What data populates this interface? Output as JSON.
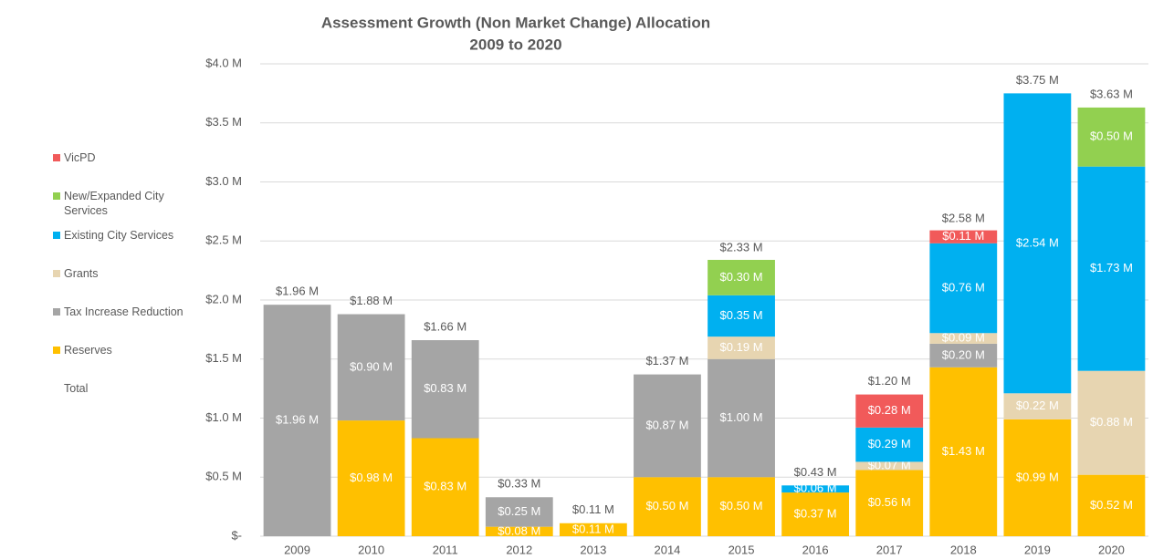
{
  "chart_data": {
    "type": "stacked_bar",
    "title": "Assessment Growth (Non Market Change) Allocation",
    "subtitle": "2009 to 2020",
    "categories": [
      "2009",
      "2010",
      "2011",
      "2012",
      "2013",
      "2014",
      "2015",
      "2016",
      "2017",
      "2018",
      "2019",
      "2020"
    ],
    "series": [
      {
        "name": "Reserves",
        "color": "#ffc000",
        "values": [
          null,
          0.98,
          0.83,
          0.08,
          0.11,
          0.5,
          0.5,
          0.37,
          0.56,
          1.43,
          0.99,
          0.52
        ],
        "value_labels": [
          null,
          "$0.98 M",
          "$0.83 M",
          "$0.08 M",
          "$0.11 M",
          "$0.50 M",
          "$0.50 M",
          "$0.37 M",
          "$0.56 M",
          "$1.43 M",
          "$0.99 M",
          "$0.52 M"
        ]
      },
      {
        "name": "Tax Increase Reduction",
        "color": "#a5a5a5",
        "values": [
          1.96,
          0.9,
          0.83,
          0.25,
          null,
          0.87,
          1.0,
          null,
          null,
          0.2,
          null,
          null
        ],
        "value_labels": [
          "$1.96 M",
          "$0.90 M",
          "$0.83 M",
          "$0.25 M",
          null,
          "$0.87 M",
          "$1.00 M",
          null,
          null,
          "$0.20 M",
          null,
          null
        ]
      },
      {
        "name": "Grants",
        "color": "#e7d5b1",
        "values": [
          null,
          null,
          null,
          null,
          null,
          null,
          0.19,
          null,
          0.07,
          0.09,
          0.22,
          0.88
        ],
        "value_labels": [
          null,
          null,
          null,
          null,
          null,
          null,
          "$0.19 M",
          null,
          "$0.07 M",
          "$0.09 M",
          "$0.22 M",
          "$0.88 M"
        ]
      },
      {
        "name": "Existing City Services",
        "color": "#00b0f0",
        "values": [
          null,
          null,
          null,
          null,
          null,
          null,
          0.35,
          0.06,
          0.29,
          0.76,
          2.54,
          1.73
        ],
        "value_labels": [
          null,
          null,
          null,
          null,
          null,
          null,
          "$0.35 M",
          "$0.06 M",
          "$0.29 M",
          "$0.76 M",
          "$2.54 M",
          "$1.73 M"
        ]
      },
      {
        "name": "New/Expanded City Services",
        "color": "#92d050",
        "values": [
          null,
          null,
          null,
          null,
          null,
          null,
          0.3,
          null,
          null,
          null,
          null,
          0.5
        ],
        "value_labels": [
          null,
          null,
          null,
          null,
          null,
          null,
          "$0.30 M",
          null,
          null,
          null,
          null,
          "$0.50 M"
        ]
      },
      {
        "name": "VicPD",
        "color": "#f15a5a",
        "values": [
          null,
          null,
          null,
          null,
          null,
          null,
          null,
          null,
          0.28,
          0.11,
          null,
          null
        ],
        "value_labels": [
          null,
          null,
          null,
          null,
          null,
          null,
          null,
          null,
          "$0.28 M",
          "$0.11 M",
          null,
          null
        ]
      }
    ],
    "totals": {
      "name": "Total",
      "values": [
        1.96,
        1.88,
        1.66,
        0.33,
        0.11,
        1.37,
        2.33,
        0.43,
        1.2,
        2.58,
        3.75,
        3.63
      ],
      "value_labels": [
        "$1.96 M",
        "$1.88 M",
        "$1.66 M",
        "$0.33 M",
        "$0.11 M",
        "$1.37 M",
        "$2.33 M",
        "$0.43 M",
        "$1.20 M",
        "$2.58 M",
        "$3.75 M",
        "$3.63 M"
      ]
    },
    "ylim": [
      0,
      4.0
    ],
    "yticks": [
      {
        "value": 0,
        "label": "$-"
      },
      {
        "value": 0.5,
        "label": "$0.5 M"
      },
      {
        "value": 1.0,
        "label": "$1.0 M"
      },
      {
        "value": 1.5,
        "label": "$1.5 M"
      },
      {
        "value": 2.0,
        "label": "$2.0 M"
      },
      {
        "value": 2.5,
        "label": "$2.5 M"
      },
      {
        "value": 3.0,
        "label": "$3.0 M"
      },
      {
        "value": 3.5,
        "label": "$3.5 M"
      },
      {
        "value": 4.0,
        "label": "$4.0 M"
      }
    ],
    "grid": true,
    "legend": "left"
  }
}
